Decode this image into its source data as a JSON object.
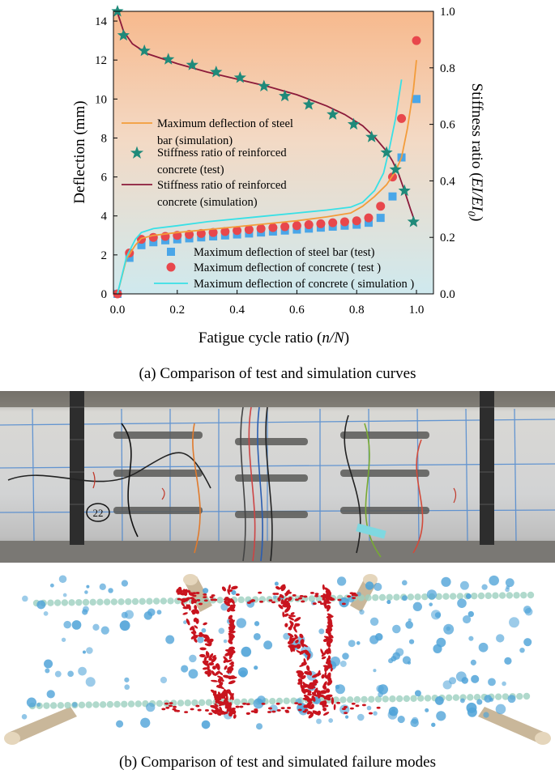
{
  "figure_a": {
    "caption": "(a) Comparison of test and simulation curves",
    "xlabel_prefix": "Fatigue cycle ratio (",
    "xlabel_var": "n/N",
    "xlabel_suffix": ")",
    "ylabel_left": "Deflection (mm)",
    "ylabel_right_prefix": "Stiffness ratio (",
    "ylabel_right_var": "EI/EI",
    "ylabel_right_sub": "0",
    "ylabel_right_suffix": ")",
    "legend_upper": {
      "steel_sim": [
        "Maximum deflection of steel",
        "bar (simulation)"
      ],
      "stiff_test": [
        "Stiffness ratio of reinforced",
        "concrete (test)"
      ],
      "stiff_sim": [
        "Stiffness ratio of reinforced",
        "concrete (simulation)"
      ]
    },
    "legend_lower": {
      "steel_test": "Maximum deflection of steel bar (test)",
      "concrete_test": "Maximum deflection of concrete ( test )",
      "concrete_sim": "Maximum deflection of concrete ( simulation )"
    }
  },
  "chart_data": {
    "type": "line",
    "title": "",
    "xlabel": "Fatigue cycle ratio (n/N)",
    "ylabel": "Deflection (mm)",
    "ylabel_right": "Stiffness ratio (EI/EI0)",
    "xlim": [
      0.0,
      1.05
    ],
    "ylim": [
      0,
      14.5
    ],
    "ylim_right": [
      0.0,
      1.0
    ],
    "x_ticks": [
      0.0,
      0.2,
      0.4,
      0.6,
      0.8,
      1.0
    ],
    "x_tick_labels": [
      "0.0",
      "0.2",
      "0.4",
      "0.6",
      "0.8",
      "1.0"
    ],
    "y_ticks": [
      0,
      2,
      4,
      6,
      8,
      10,
      12,
      14
    ],
    "y_tick_labels": [
      "0",
      "2",
      "4",
      "6",
      "8",
      "10",
      "12",
      "14"
    ],
    "y_right_ticks": [
      0.0,
      0.2,
      0.4,
      0.6,
      0.8,
      1.0
    ],
    "y_right_tick_labels": [
      "0.0",
      "0.2",
      "0.4",
      "0.6",
      "0.8",
      "1.0"
    ],
    "series": [
      {
        "name": "Maximum deflection of steel bar (simulation)",
        "kind": "line",
        "axis": "left",
        "color": "#f39c3a",
        "x": [
          0,
          0.03,
          0.06,
          0.08,
          0.12,
          0.2,
          0.3,
          0.4,
          0.5,
          0.6,
          0.7,
          0.78,
          0.82,
          0.86,
          0.9,
          0.93,
          0.95,
          0.97,
          0.99,
          1.0
        ],
        "y": [
          0,
          1.8,
          2.5,
          2.85,
          3.0,
          3.15,
          3.3,
          3.45,
          3.6,
          3.75,
          3.95,
          4.15,
          4.5,
          5.0,
          5.6,
          6.3,
          7.0,
          8.5,
          10.5,
          12.0
        ]
      },
      {
        "name": "Stiffness ratio of reinforced concrete (test)",
        "kind": "star",
        "axis": "right",
        "color": "#1f8a7a",
        "x": [
          0.0,
          0.02,
          0.09,
          0.17,
          0.25,
          0.33,
          0.41,
          0.49,
          0.56,
          0.64,
          0.72,
          0.79,
          0.85,
          0.9,
          0.93,
          0.96,
          0.99
        ],
        "y": [
          1.0,
          0.915,
          0.86,
          0.83,
          0.81,
          0.785,
          0.765,
          0.735,
          0.7,
          0.67,
          0.635,
          0.6,
          0.555,
          0.5,
          0.44,
          0.365,
          0.255
        ]
      },
      {
        "name": "Stiffness ratio of reinforced concrete (simulation)",
        "kind": "line",
        "axis": "right",
        "color": "#8b1a3a",
        "x": [
          0,
          0.02,
          0.05,
          0.1,
          0.2,
          0.3,
          0.4,
          0.5,
          0.6,
          0.7,
          0.76,
          0.82,
          0.86,
          0.9,
          0.92,
          0.94,
          0.96,
          0.98,
          1.0
        ],
        "y": [
          0.995,
          0.93,
          0.885,
          0.85,
          0.815,
          0.785,
          0.76,
          0.735,
          0.705,
          0.665,
          0.635,
          0.595,
          0.555,
          0.505,
          0.47,
          0.425,
          0.365,
          0.3,
          0.24
        ]
      },
      {
        "name": "Maximum deflection of steel bar (test)",
        "kind": "square",
        "axis": "left",
        "color": "#4aa6e8",
        "x": [
          0.0,
          0.04,
          0.08,
          0.12,
          0.16,
          0.2,
          0.24,
          0.28,
          0.32,
          0.36,
          0.4,
          0.44,
          0.48,
          0.52,
          0.56,
          0.6,
          0.64,
          0.68,
          0.72,
          0.76,
          0.8,
          0.84,
          0.88,
          0.92,
          0.95,
          1.0
        ],
        "y": [
          0.0,
          1.85,
          2.5,
          2.65,
          2.75,
          2.8,
          2.85,
          2.9,
          2.95,
          3.0,
          3.05,
          3.1,
          3.15,
          3.2,
          3.25,
          3.3,
          3.35,
          3.4,
          3.45,
          3.5,
          3.55,
          3.65,
          3.9,
          5.0,
          7.0,
          10.0
        ]
      },
      {
        "name": "Maximum deflection of concrete ( test )",
        "kind": "circle",
        "axis": "left",
        "color": "#e8474c",
        "x": [
          0.0,
          0.04,
          0.08,
          0.12,
          0.16,
          0.2,
          0.24,
          0.28,
          0.32,
          0.36,
          0.4,
          0.44,
          0.48,
          0.52,
          0.56,
          0.6,
          0.64,
          0.68,
          0.72,
          0.76,
          0.8,
          0.84,
          0.88,
          0.92,
          0.95,
          1.0
        ],
        "y": [
          0.0,
          2.1,
          2.8,
          2.9,
          2.95,
          3.0,
          3.05,
          3.1,
          3.15,
          3.2,
          3.25,
          3.3,
          3.35,
          3.4,
          3.45,
          3.5,
          3.55,
          3.6,
          3.65,
          3.7,
          3.75,
          3.9,
          4.5,
          6.0,
          9.0,
          13.0
        ]
      },
      {
        "name": "Maximum deflection of concrete ( simulation )",
        "kind": "line",
        "axis": "left",
        "color": "#38e0e6",
        "x": [
          0,
          0.03,
          0.06,
          0.08,
          0.12,
          0.2,
          0.3,
          0.4,
          0.5,
          0.6,
          0.7,
          0.78,
          0.82,
          0.86,
          0.89,
          0.91,
          0.93,
          0.95
        ],
        "y": [
          0,
          1.9,
          2.8,
          3.15,
          3.35,
          3.5,
          3.7,
          3.85,
          4.0,
          4.15,
          4.3,
          4.45,
          4.7,
          5.3,
          6.2,
          7.5,
          9.0,
          11.0
        ]
      }
    ]
  },
  "figure_b": {
    "caption": "(b) Comparison of test and simulated failure modes",
    "photo_annotation": "22"
  }
}
